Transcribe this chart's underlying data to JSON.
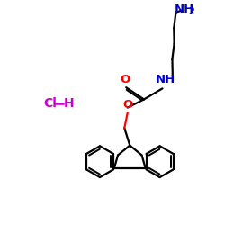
{
  "bg_color": "#ffffff",
  "bond_color": "#000000",
  "oxygen_color": "#ff0000",
  "nitrogen_color": "#0000cd",
  "hcl_color": "#cc00cc",
  "line_width": 1.6,
  "figsize": [
    2.5,
    2.5
  ],
  "dpi": 100,
  "xlim": [
    0,
    10
  ],
  "ylim": [
    0,
    10
  ]
}
